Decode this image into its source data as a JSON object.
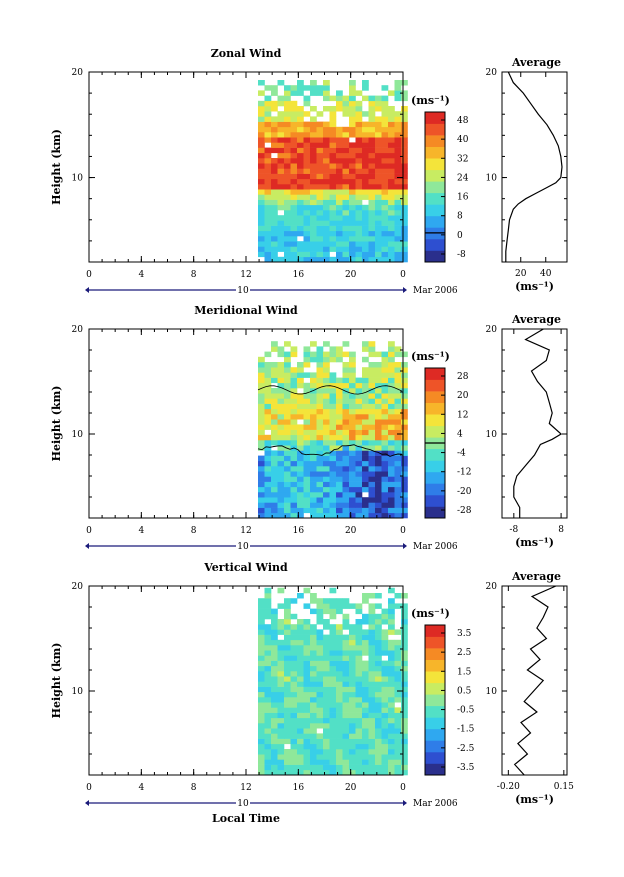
{
  "chart_data": [
    {
      "type": "heatmap",
      "title": "Zonal Wind",
      "ylabel": "Height (km)",
      "y_ticks": [
        "20",
        "10"
      ],
      "x_ticks": [
        "0",
        "4",
        "8",
        "12",
        "16",
        "20",
        "0"
      ],
      "date_day": "10",
      "date_label": "Mar 2006",
      "colorbar_unit": "(ms⁻¹)",
      "colorbar_ticks": [
        "48",
        "40",
        "32",
        "24",
        "16",
        "8",
        "0",
        "-8"
      ],
      "zero_contour": false,
      "average": {
        "title": "Average",
        "y_ticks": [
          "20",
          "10"
        ],
        "x_ticks": [
          "20",
          "40"
        ],
        "xlabel": "(ms⁻¹)",
        "profile": [
          [
            20,
            10
          ],
          [
            19,
            14
          ],
          [
            18,
            22
          ],
          [
            17,
            28
          ],
          [
            16,
            34
          ],
          [
            15,
            41
          ],
          [
            14,
            46
          ],
          [
            13,
            50
          ],
          [
            12,
            52
          ],
          [
            11,
            53
          ],
          [
            10,
            52
          ],
          [
            9.5,
            48
          ],
          [
            9,
            40
          ],
          [
            8.5,
            32
          ],
          [
            8,
            24
          ],
          [
            7.5,
            18
          ],
          [
            7,
            14
          ],
          [
            6,
            11
          ],
          [
            5,
            10
          ],
          [
            4,
            9
          ],
          [
            3,
            8
          ],
          [
            2,
            8
          ]
        ]
      }
    },
    {
      "type": "heatmap",
      "title": "Meridional Wind",
      "ylabel": "Height (km)",
      "y_ticks": [
        "20",
        "10"
      ],
      "x_ticks": [
        "0",
        "4",
        "8",
        "12",
        "16",
        "20",
        "0"
      ],
      "date_day": "10",
      "date_label": "Mar 2006",
      "colorbar_unit": "(ms⁻¹)",
      "colorbar_ticks": [
        "28",
        "20",
        "12",
        "4",
        "-4",
        "-12",
        "-20",
        "-28"
      ],
      "zero_contour": true,
      "average": {
        "title": "Average",
        "y_ticks": [
          "20",
          "10"
        ],
        "x_ticks": [
          "-8",
          "8"
        ],
        "xlabel": "(ms⁻¹)",
        "profile": [
          [
            20,
            2
          ],
          [
            19,
            -4
          ],
          [
            18,
            4
          ],
          [
            17,
            3
          ],
          [
            16,
            -2
          ],
          [
            15,
            0
          ],
          [
            14,
            3
          ],
          [
            13,
            4
          ],
          [
            12,
            5
          ],
          [
            11,
            4
          ],
          [
            10,
            8
          ],
          [
            9.5,
            5
          ],
          [
            9,
            1
          ],
          [
            8,
            -1
          ],
          [
            7,
            -4
          ],
          [
            6,
            -7
          ],
          [
            5,
            -8
          ],
          [
            4,
            -8
          ],
          [
            3,
            -6
          ],
          [
            2,
            -6
          ]
        ]
      }
    },
    {
      "type": "heatmap",
      "title": "Vertical Wind",
      "ylabel": "Height (km)",
      "xlabel": "Local Time",
      "y_ticks": [
        "20",
        "10"
      ],
      "x_ticks": [
        "0",
        "4",
        "8",
        "12",
        "16",
        "20",
        "0"
      ],
      "date_day": "10",
      "date_label": "Mar 2006",
      "colorbar_unit": "(ms⁻¹)",
      "colorbar_ticks": [
        "3.5",
        "2.5",
        "1.5",
        "0.5",
        "-0.5",
        "-1.5",
        "-2.5",
        "-3.5"
      ],
      "zero_contour": false,
      "average": {
        "title": "Average",
        "y_ticks": [
          "20",
          "10"
        ],
        "x_ticks": [
          "-0.20",
          "0.15"
        ],
        "xlabel": "(ms⁻¹)",
        "profile": [
          [
            20,
            0.1
          ],
          [
            19,
            -0.05
          ],
          [
            18,
            0.05
          ],
          [
            17,
            0.02
          ],
          [
            16,
            -0.02
          ],
          [
            15,
            0.04
          ],
          [
            14,
            -0.06
          ],
          [
            13,
            0.0
          ],
          [
            12,
            -0.08
          ],
          [
            11,
            0.02
          ],
          [
            10,
            -0.04
          ],
          [
            9,
            -0.1
          ],
          [
            8,
            -0.02
          ],
          [
            7,
            -0.12
          ],
          [
            6,
            -0.06
          ],
          [
            5,
            -0.14
          ],
          [
            4,
            -0.08
          ],
          [
            3,
            -0.16
          ],
          [
            2,
            -0.1
          ]
        ]
      }
    }
  ]
}
